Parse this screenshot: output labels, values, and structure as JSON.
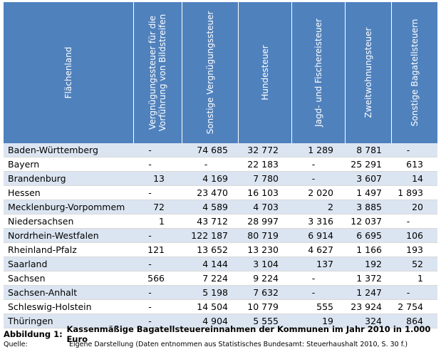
{
  "table": {
    "headers": [
      {
        "line1": "Flächenland",
        "line2": ""
      },
      {
        "line1": "Vergnügungssteuer für die",
        "line2": "Vorführung von Bildstreifen"
      },
      {
        "line1": "Sonstige Vergnügungssteuer",
        "line2": ""
      },
      {
        "line1": "Hundesteuer",
        "line2": ""
      },
      {
        "line1": "Jagd- und Fischereisteuer",
        "line2": ""
      },
      {
        "line1": "Zweitwohnungsteuer",
        "line2": ""
      },
      {
        "line1": "Sonstige Bagatellsteuern",
        "line2": ""
      }
    ],
    "rows": [
      [
        "Baden-Württemberg",
        "-",
        "74 685",
        "32 772",
        "1 289",
        "8 781",
        "-"
      ],
      [
        "Bayern",
        "-",
        "-",
        "22 183",
        "-",
        "25 291",
        "613"
      ],
      [
        "Brandenburg",
        "13",
        "4 169",
        "7 780",
        "-",
        "3 607",
        "14"
      ],
      [
        "Hessen",
        "-",
        "23 470",
        "16 103",
        "2 020",
        "1 497",
        "1 893"
      ],
      [
        "Mecklenburg-Vorpommem",
        "72",
        "4 589",
        "4 703",
        "2",
        "3 885",
        "20"
      ],
      [
        "Niedersachsen",
        "1",
        "43 712",
        "28 997",
        "3 316",
        "12 037",
        "-"
      ],
      [
        "Nordrhein-Westfalen",
        "-",
        "122 187",
        "80 719",
        "6 914",
        "6 695",
        "106"
      ],
      [
        "Rheinland-Pfalz",
        "121",
        "13 652",
        "13 230",
        "4 627",
        "1 166",
        "193"
      ],
      [
        "Saarland",
        "-",
        "4 144",
        "3 104",
        "137",
        "192",
        "52"
      ],
      [
        "Sachsen",
        "566",
        "7 224",
        "9 224",
        "-",
        "1 372",
        "1"
      ],
      [
        "Sachsen-Anhalt",
        "-",
        "5 198",
        "7 632",
        "-",
        "1 247",
        "-"
      ],
      [
        "Schleswig-Holstein",
        "-",
        "14 504",
        "10 779",
        "555",
        "23 924",
        "2 754"
      ],
      [
        "Thüringen",
        "-",
        "4 904",
        "5 555",
        "19",
        "324",
        "864"
      ]
    ]
  },
  "caption": {
    "label": "Abbildung 1:",
    "text": "Kassenmäßige Bagatellsteuereinnahmen der Kommunen im Jahr 2010 in 1.000 Euro",
    "source_label": "Quelle:",
    "source_text": "Eigene Darstellung (Daten entnommen aus Statistisches Bundesamt: Steuerhaushalt 2010, S. 30 f.)"
  },
  "colors": {
    "header_bg": "#4f81bd",
    "stripe": "#dbe5f1"
  }
}
